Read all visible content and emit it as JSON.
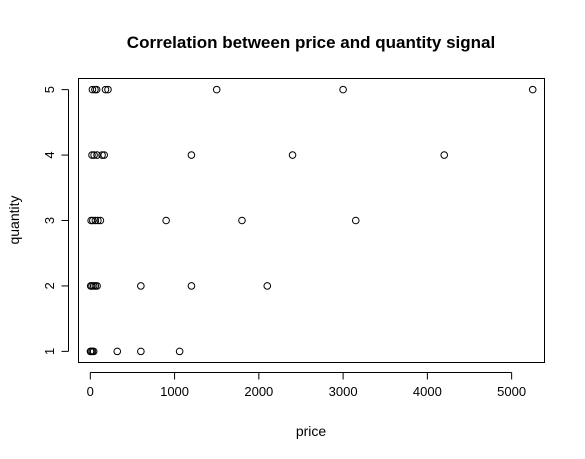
{
  "chart_data": {
    "type": "scatter",
    "title": "Correlation between price and quantity signal",
    "xlabel": "price",
    "ylabel": "quantity",
    "xlim": [
      -140,
      5390
    ],
    "ylim": [
      0.83,
      5.17
    ],
    "xticks": [
      0,
      1000,
      2000,
      3000,
      4000,
      5000
    ],
    "yticks": [
      1,
      2,
      3,
      4,
      5
    ],
    "grid": false,
    "point_color": "#000000",
    "points": [
      {
        "x": 2,
        "y": 1
      },
      {
        "x": 10,
        "y": 1
      },
      {
        "x": 25,
        "y": 1
      },
      {
        "x": 40,
        "y": 1
      },
      {
        "x": 320,
        "y": 1
      },
      {
        "x": 600,
        "y": 1
      },
      {
        "x": 1060,
        "y": 1
      },
      {
        "x": 5,
        "y": 2
      },
      {
        "x": 20,
        "y": 2
      },
      {
        "x": 40,
        "y": 2
      },
      {
        "x": 60,
        "y": 2
      },
      {
        "x": 80,
        "y": 2
      },
      {
        "x": 600,
        "y": 2
      },
      {
        "x": 1200,
        "y": 2
      },
      {
        "x": 2100,
        "y": 2
      },
      {
        "x": 10,
        "y": 3
      },
      {
        "x": 30,
        "y": 3
      },
      {
        "x": 60,
        "y": 3
      },
      {
        "x": 90,
        "y": 3
      },
      {
        "x": 120,
        "y": 3
      },
      {
        "x": 900,
        "y": 3
      },
      {
        "x": 1800,
        "y": 3
      },
      {
        "x": 3150,
        "y": 3
      },
      {
        "x": 20,
        "y": 4
      },
      {
        "x": 45,
        "y": 4
      },
      {
        "x": 80,
        "y": 4
      },
      {
        "x": 140,
        "y": 4
      },
      {
        "x": 165,
        "y": 4
      },
      {
        "x": 1200,
        "y": 4
      },
      {
        "x": 2400,
        "y": 4
      },
      {
        "x": 4200,
        "y": 4
      },
      {
        "x": 25,
        "y": 5
      },
      {
        "x": 55,
        "y": 5
      },
      {
        "x": 75,
        "y": 5
      },
      {
        "x": 180,
        "y": 5
      },
      {
        "x": 210,
        "y": 5
      },
      {
        "x": 1500,
        "y": 5
      },
      {
        "x": 3000,
        "y": 5
      },
      {
        "x": 5250,
        "y": 5
      }
    ]
  }
}
